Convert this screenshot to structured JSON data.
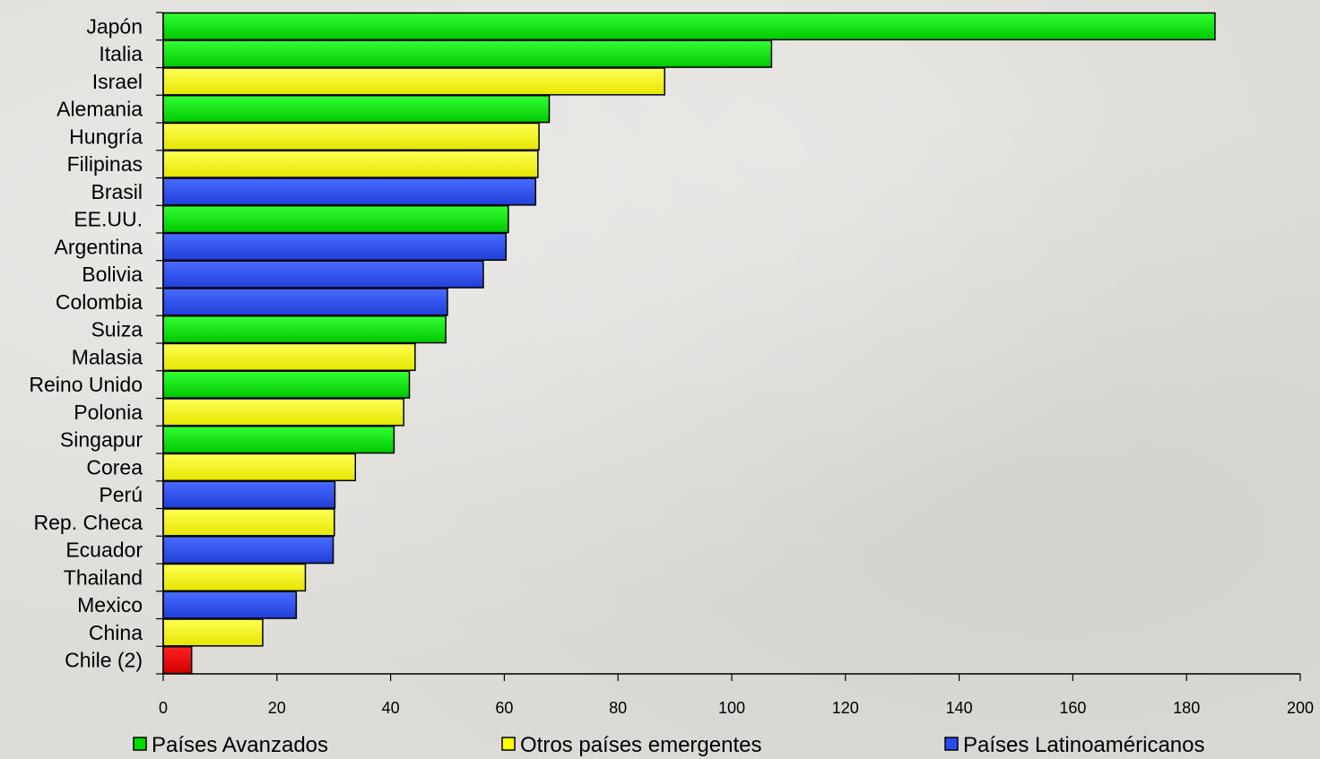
{
  "chart_data": {
    "type": "bar",
    "orientation": "horizontal",
    "categories": [
      "Japón",
      "Italia",
      "Israel",
      "Alemania",
      "Hungría",
      "Filipinas",
      "Brasil",
      "EE.UU.",
      "Argentina",
      "Bolivia",
      "Colombia",
      "Suiza",
      "Malasia",
      "Reino Unido",
      "Polonia",
      "Singapur",
      "Corea",
      "Perú",
      "Rep. Checa",
      "Ecuador",
      "Thailand",
      "Mexico",
      "China",
      "Chile (2)"
    ],
    "values": [
      185,
      107,
      88.2,
      67.9,
      66.1,
      65.9,
      65.5,
      60.7,
      60.3,
      56.3,
      50,
      49.7,
      44.3,
      43.3,
      42.3,
      40.6,
      33.8,
      30.2,
      30.1,
      29.9,
      25,
      23.4,
      17.5,
      5
    ],
    "groups": [
      "avanzados",
      "avanzados",
      "emergentes",
      "avanzados",
      "emergentes",
      "emergentes",
      "latinoamericanos",
      "avanzados",
      "latinoamericanos",
      "latinoamericanos",
      "latinoamericanos",
      "avanzados",
      "emergentes",
      "avanzados",
      "emergentes",
      "avanzados",
      "emergentes",
      "latinoamericanos",
      "emergentes",
      "latinoamericanos",
      "emergentes",
      "latinoamericanos",
      "emergentes",
      "chile"
    ],
    "group_colors": {
      "avanzados": "#00dd00",
      "emergentes": "#ffff00",
      "latinoamericanos": "#2a4bee",
      "chile": "#ee0000"
    },
    "xlim": [
      0,
      200
    ],
    "xticks": [
      0,
      20,
      40,
      60,
      80,
      100,
      120,
      140,
      160,
      180,
      200
    ],
    "grid": false,
    "legend": {
      "placement": "bottom",
      "items": [
        {
          "label": "Países Avanzados",
          "group": "avanzados"
        },
        {
          "label": "Otros países emergentes",
          "group": "emergentes"
        },
        {
          "label": "Países Latinoaméricanos",
          "group": "latinoamericanos"
        }
      ]
    },
    "title": "",
    "xlabel": "",
    "ylabel": ""
  }
}
